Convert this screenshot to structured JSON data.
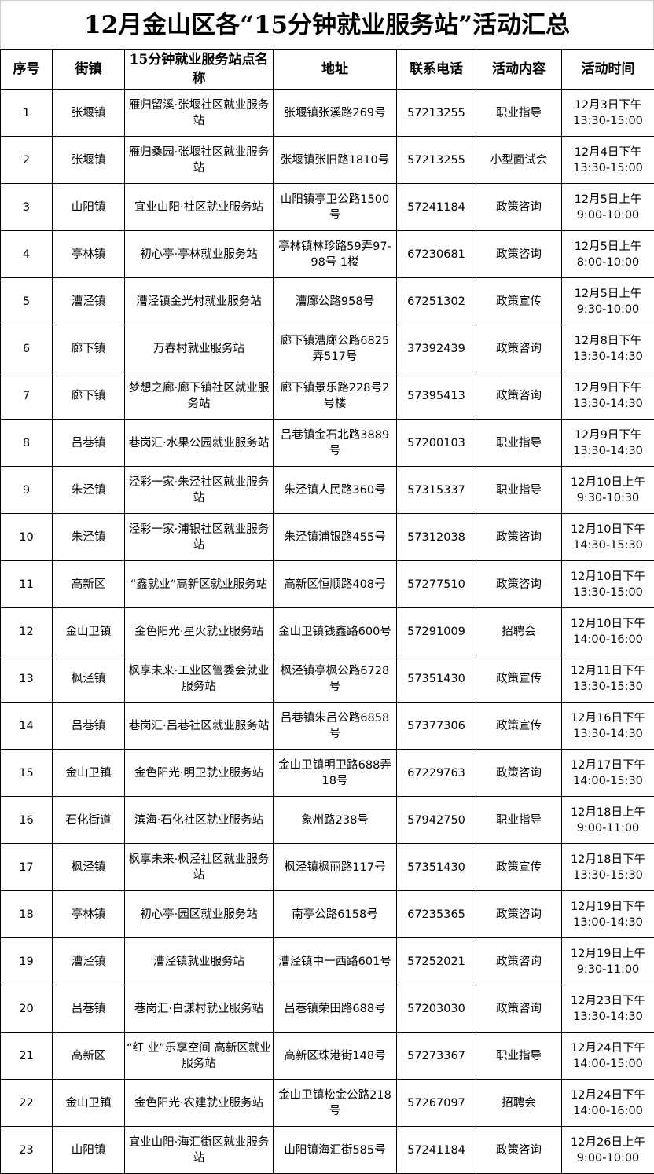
{
  "title": "12月金山区各“15分钟就业服务站”活动汇总",
  "headers": [
    "序号",
    "街镇",
    "15分钟就业服务站点名称",
    "地址",
    "联系电话",
    "活动内容",
    "活动时间"
  ],
  "rows": [
    {
      "no": "1",
      "town": "张堰镇",
      "station": "雁归留溪·张堰社区就业服务站",
      "address": "张堰镇张溪路269号",
      "phone": "57213255",
      "activity": "职业指导",
      "date": "12月3日下午",
      "time": "13:30-15:00"
    },
    {
      "no": "2",
      "town": "张堰镇",
      "station": "雁归桑园·张堰社区就业服务站",
      "address": "张堰镇张旧路1810号",
      "phone": "57213255",
      "activity": "小型面试会",
      "date": "12月4日下午",
      "time": "13:30-15:00"
    },
    {
      "no": "3",
      "town": "山阳镇",
      "station": "宜业山阳·社区就业服务站",
      "address": "山阳镇亭卫公路1500号",
      "phone": "57241184",
      "activity": "政策咨询",
      "date": "12月5日上午",
      "time": "9:00-10:00"
    },
    {
      "no": "4",
      "town": "亭林镇",
      "station": "初心亭·亭林就业服务站",
      "address": "亭林镇林珍路59弄97-98号 1楼",
      "phone": "67230681",
      "activity": "政策咨询",
      "date": "12月5日上午",
      "time": "8:00-10:00"
    },
    {
      "no": "5",
      "town": "漕泾镇",
      "station": "漕泾镇金光村就业服务站",
      "address": "漕廊公路958号",
      "phone": "67251302",
      "activity": "政策宣传",
      "date": "12月5日上午",
      "time": "9:30-10:00"
    },
    {
      "no": "6",
      "town": "廊下镇",
      "station": "万春村就业服务站",
      "address": "廊下镇漕廊公路6825弄517号",
      "phone": "37392439",
      "activity": "政策咨询",
      "date": "12月8日下午",
      "time": "13:30-14:30"
    },
    {
      "no": "7",
      "town": "廊下镇",
      "station": "梦想之廊·廊下镇社区就业服务站",
      "address": "廊下镇景乐路228号2号楼",
      "phone": "57395413",
      "activity": "政策咨询",
      "date": "12月9日下午",
      "time": "13:30-14:30"
    },
    {
      "no": "8",
      "town": "吕巷镇",
      "station": "巷岗汇·水果公园就业服务站",
      "address": "吕巷镇金石北路3889号",
      "phone": "57200103",
      "activity": "职业指导",
      "date": "12月9日下午",
      "time": "13:30-14:30"
    },
    {
      "no": "9",
      "town": "朱泾镇",
      "station": "泾彩一家·朱泾社区就业服务站",
      "address": "朱泾镇人民路360号",
      "phone": "57315337",
      "activity": "职业指导",
      "date": "12月10日上午",
      "time": "9:30-10:30"
    },
    {
      "no": "10",
      "town": "朱泾镇",
      "station": "泾彩一家·浦银社区就业服务站",
      "address": "朱泾镇浦银路455号",
      "phone": "57312038",
      "activity": "政策咨询",
      "date": "12月10日下午",
      "time": "14:30-15:30"
    },
    {
      "no": "11",
      "town": "高新区",
      "station": "“鑫就业”高新区就业服务站",
      "address": "高新区恒顺路408号",
      "phone": "57277510",
      "activity": "政策咨询",
      "date": "12月10日下午",
      "time": "13:30-15:00"
    },
    {
      "no": "12",
      "town": "金山卫镇",
      "station": "金色阳光·星火就业服务站",
      "address": "金山卫镇钱鑫路600号",
      "phone": "57291009",
      "activity": "招聘会",
      "date": "12月10日下午",
      "time": "14:00-16:00"
    },
    {
      "no": "13",
      "town": "枫泾镇",
      "station": "枫享未来·工业区管委会就业服务站",
      "address": "枫泾镇亭枫公路6728号",
      "phone": "57351430",
      "activity": "政策宣传",
      "date": "12月11日下午",
      "time": "13:30-15:30"
    },
    {
      "no": "14",
      "town": "吕巷镇",
      "station": "巷岗汇·吕巷社区就业服务站",
      "address": "吕巷镇朱吕公路6858号",
      "phone": "57377306",
      "activity": "政策宣传",
      "date": "12月16日下午",
      "time": "13:30-14:30"
    },
    {
      "no": "15",
      "town": "金山卫镇",
      "station": "金色阳光·明卫就业服务站",
      "address": "金山卫镇明卫路688弄18号",
      "phone": "67229763",
      "activity": "政策咨询",
      "date": "12月17日下午",
      "time": "14:00-15:30"
    },
    {
      "no": "16",
      "town": "石化街道",
      "station": "滨海·石化社区就业服务站",
      "address": "象州路238号",
      "phone": "57942750",
      "activity": "职业指导",
      "date": "12月18日上午",
      "time": "9:00-11:00"
    },
    {
      "no": "17",
      "town": "枫泾镇",
      "station": "枫享未来·枫泾社区就业服务站",
      "address": "枫泾镇枫丽路117号",
      "phone": "57351430",
      "activity": "政策宣传",
      "date": "12月18日下午",
      "time": "13:30-15:30"
    },
    {
      "no": "18",
      "town": "亭林镇",
      "station": "初心亭·园区就业服务站",
      "address": "南亭公路6158号",
      "phone": "67235365",
      "activity": "政策咨询",
      "date": "12月19日下午",
      "time": "13:00-14:30"
    },
    {
      "no": "19",
      "town": "漕泾镇",
      "station": "漕泾镇就业服务站",
      "address": "漕泾镇中一西路601号",
      "phone": "57252021",
      "activity": "政策咨询",
      "date": "12月19日上午",
      "time": "9:30-11:00"
    },
    {
      "no": "20",
      "town": "吕巷镇",
      "station": "巷岗汇·白漾村就业服务站",
      "address": "吕巷镇荣田路688号",
      "phone": "57203030",
      "activity": "政策咨询",
      "date": "12月23日下午",
      "time": "13:30-14:30"
    },
    {
      "no": "21",
      "town": "高新区",
      "station": "“红 业”乐享空间 高新区就业服务站",
      "address": "高新区珠港街148号",
      "phone": "57273367",
      "activity": "职业指导",
      "date": "12月24日下午",
      "time": "14:00-15:00"
    },
    {
      "no": "22",
      "town": "金山卫镇",
      "station": "金色阳光·农建就业服务站",
      "address": "金山卫镇松金公路218号",
      "phone": "57267097",
      "activity": "招聘会",
      "date": "12月24日下午",
      "time": "14:00-16:00"
    },
    {
      "no": "23",
      "town": "山阳镇",
      "station": "宜业山阳·海汇街区就业服务站",
      "address": "山阳镇海汇街585号",
      "phone": "57241184",
      "activity": "政策咨询",
      "date": "12月26日上午",
      "time": "9:00-10:00"
    }
  ]
}
